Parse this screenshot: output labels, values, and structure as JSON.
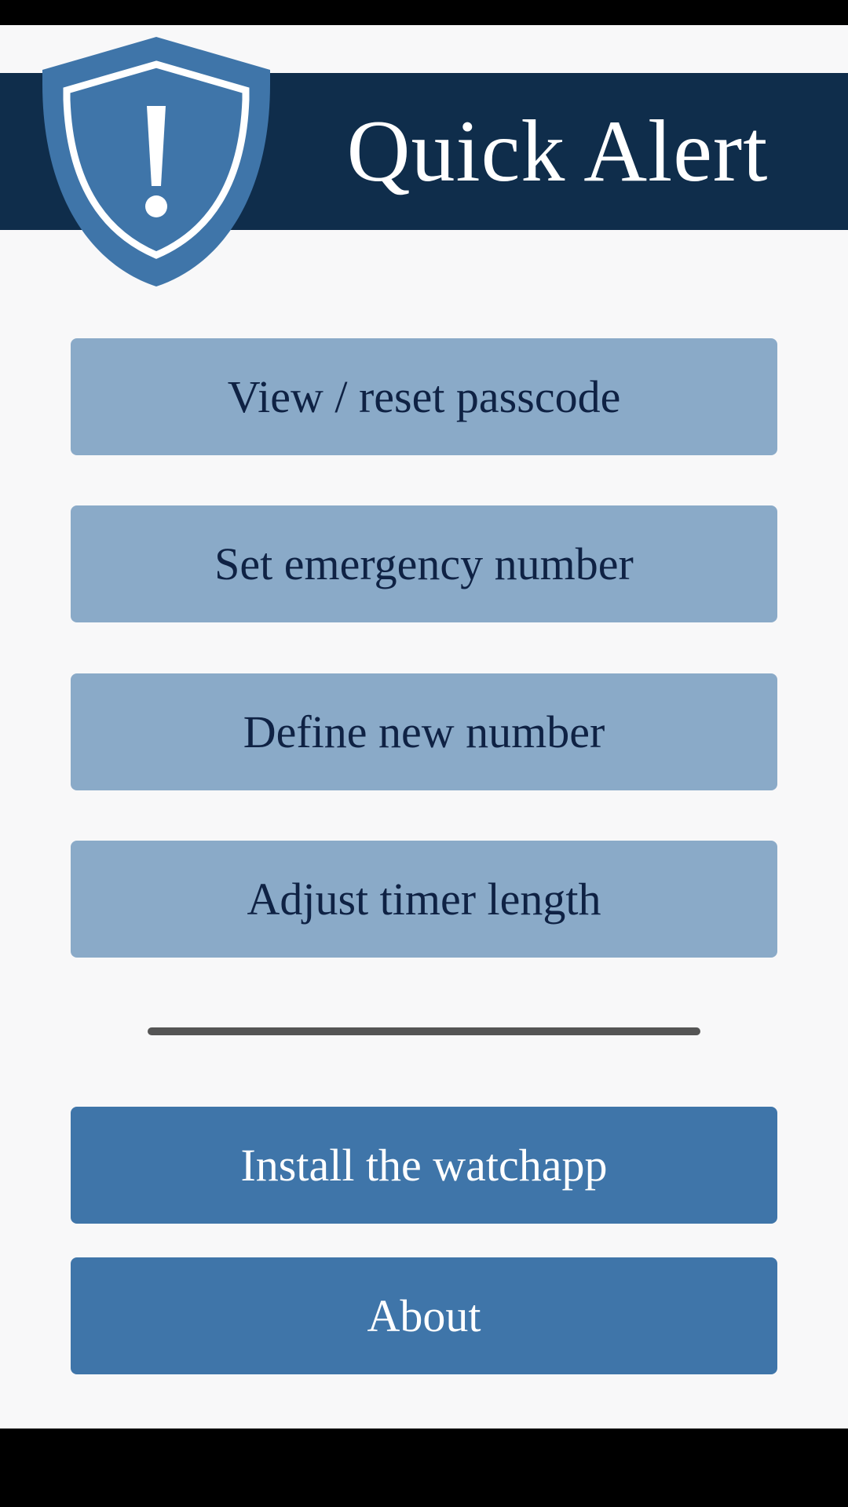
{
  "app": {
    "title": "Quick Alert"
  },
  "icons": {
    "logo": "shield-exclamation-icon"
  },
  "colors": {
    "header_band": "#0f2d4b",
    "shield": "#3f75a9",
    "secondary_button": "#8aaac8",
    "primary_button": "#3f75a9",
    "background": "#f8f8f9"
  },
  "menu": {
    "view_reset_passcode": "View / reset passcode",
    "set_emergency_number": "Set emergency number",
    "define_new_number": "Define new number",
    "adjust_timer_length": "Adjust timer length"
  },
  "actions": {
    "install_watchapp": "Install the watchapp",
    "about": "About"
  }
}
